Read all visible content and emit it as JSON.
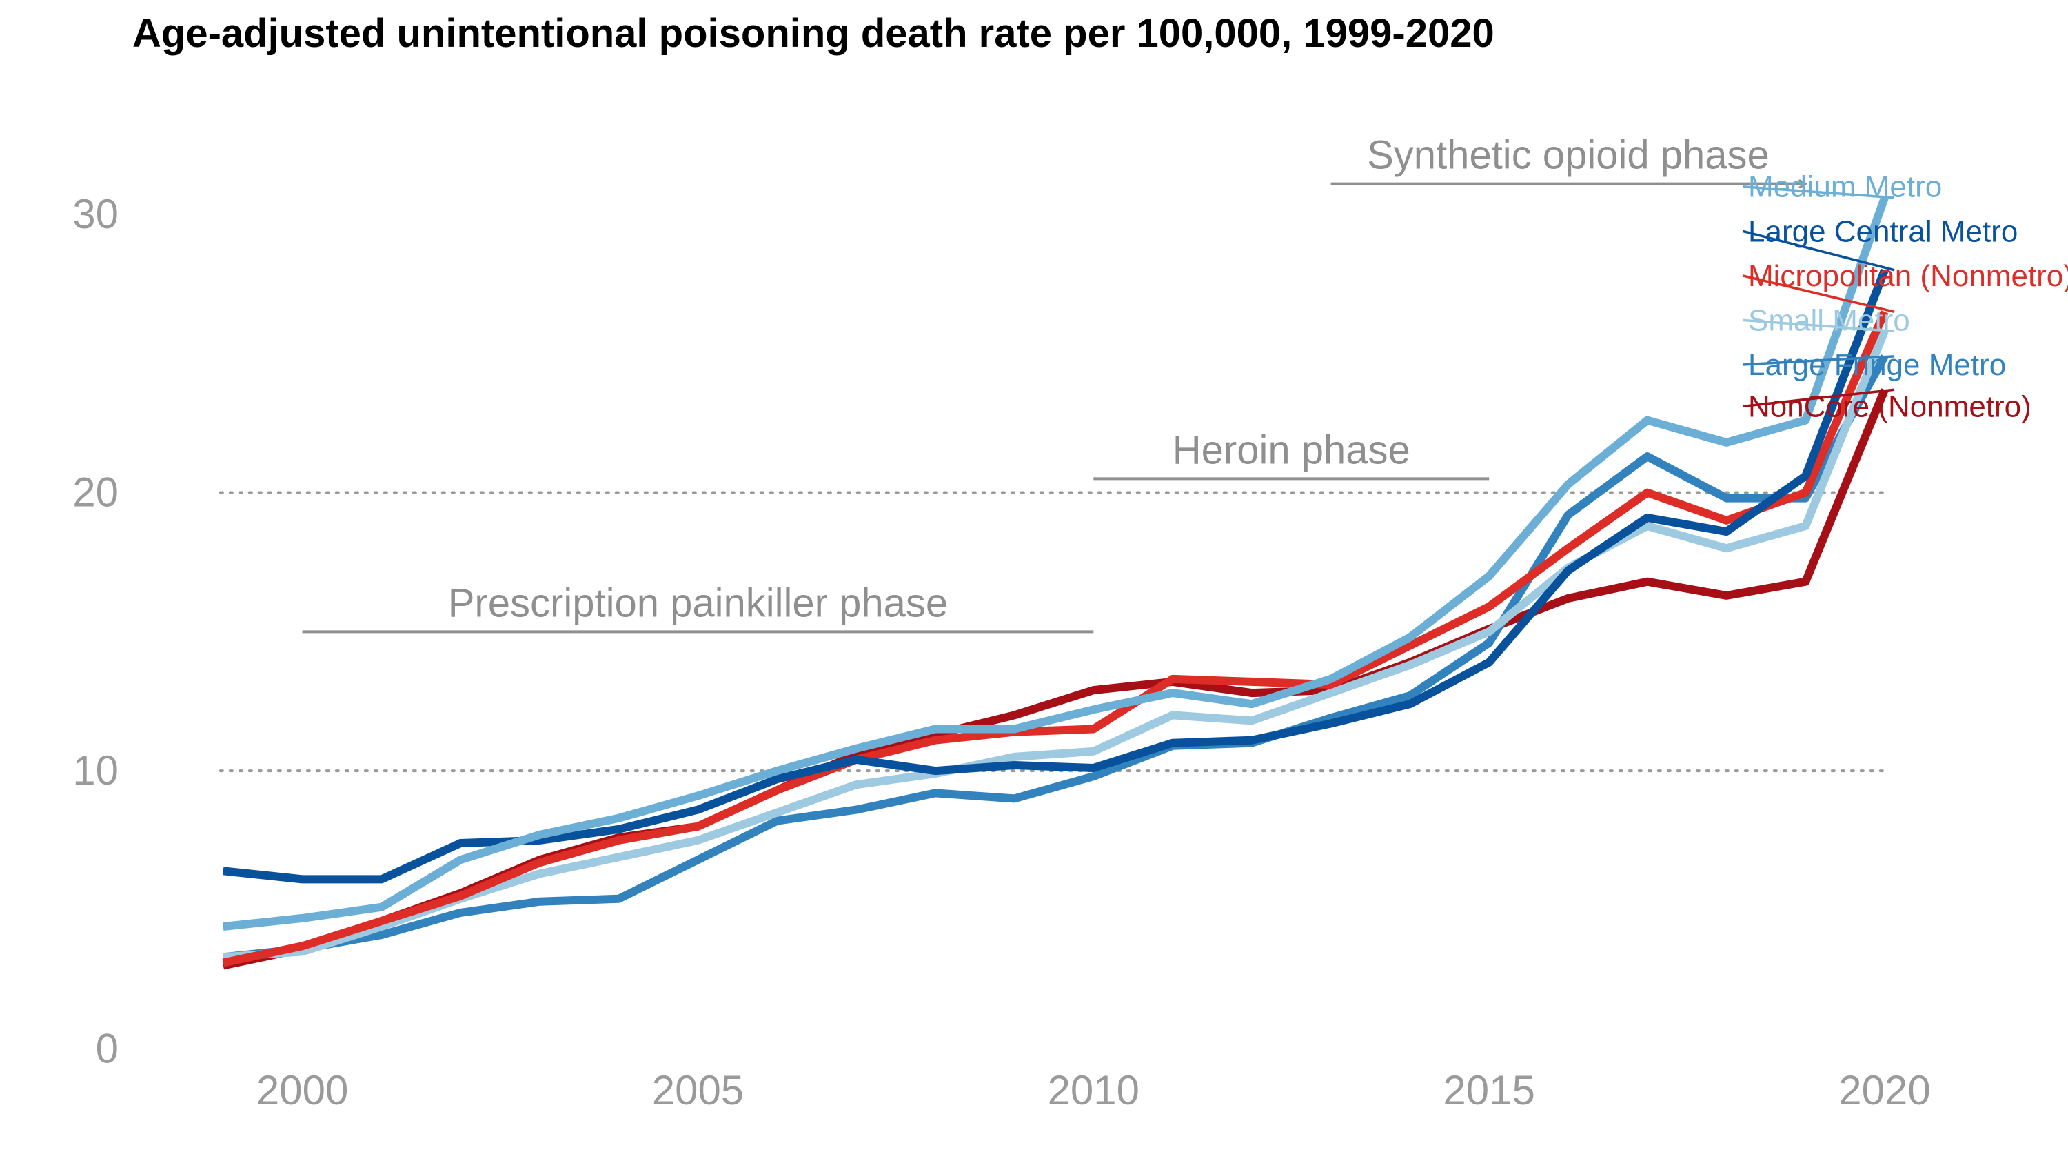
{
  "chart_data": {
    "type": "line",
    "title": "Age-adjusted unintentional poisoning death rate per 100,000, 1999-2020",
    "xlabel": "",
    "ylabel": "",
    "xlim": [
      1998.2,
      2022.3
    ],
    "ylim": [
      -1.2,
      33
    ],
    "x_ticks": [
      2000,
      2005,
      2010,
      2015,
      2020
    ],
    "x_tick_labels": [
      "2000",
      "2005",
      "2010",
      "2015",
      "2020"
    ],
    "y_ticks": [
      0,
      10,
      20,
      30
    ],
    "y_tick_labels": [
      "0",
      "10",
      "20",
      "30"
    ],
    "gridlines": [
      10,
      20
    ],
    "phases": [
      {
        "label": "Prescription painkiller phase",
        "x_start": 2000,
        "x_end": 2010,
        "y": 15,
        "arrow": false
      },
      {
        "label": "Heroin phase",
        "x_start": 2010,
        "x_end": 2015,
        "y": 20.5,
        "arrow": false
      },
      {
        "label": "Synthetic opioid phase",
        "x_start": 2013,
        "x_end": 2019,
        "y": 31.1,
        "arrow": true
      }
    ],
    "x": [
      1999,
      2000,
      2001,
      2002,
      2003,
      2004,
      2005,
      2006,
      2007,
      2008,
      2009,
      2010,
      2011,
      2012,
      2013,
      2014,
      2015,
      2016,
      2017,
      2018,
      2019,
      2020
    ],
    "series": [
      {
        "name": "Medium Metro",
        "color": "#6baed6",
        "legend_y": 31.0,
        "values": [
          4.4,
          4.7,
          5.1,
          6.8,
          7.7,
          8.3,
          9.1,
          10.0,
          10.8,
          11.5,
          11.5,
          12.2,
          12.8,
          12.4,
          13.3,
          14.8,
          17.0,
          20.3,
          22.6,
          21.8,
          22.6,
          30.6
        ]
      },
      {
        "name": "Large Central Metro",
        "color": "#08519c",
        "legend_y": 29.4,
        "values": [
          6.4,
          6.1,
          6.1,
          7.4,
          7.5,
          7.9,
          8.6,
          9.7,
          10.4,
          10.0,
          10.2,
          10.1,
          11.0,
          11.1,
          11.7,
          12.4,
          13.9,
          17.2,
          19.1,
          18.6,
          20.6,
          28.0
        ]
      },
      {
        "name": "Micropolitan (Nonmetro)",
        "color": "#de2d26",
        "legend_y": 27.8,
        "values": [
          3.1,
          3.7,
          4.6,
          5.5,
          6.7,
          7.5,
          8.0,
          9.3,
          10.4,
          11.1,
          11.4,
          11.5,
          13.3,
          13.2,
          13.1,
          14.5,
          15.9,
          18.0,
          20.0,
          19.0,
          20.0,
          26.5
        ]
      },
      {
        "name": "Small Metro",
        "color": "#9ecae1",
        "legend_y": 26.2,
        "values": [
          3.3,
          3.5,
          4.4,
          5.4,
          6.3,
          6.9,
          7.5,
          8.5,
          9.5,
          9.9,
          10.5,
          10.7,
          12.0,
          11.8,
          12.8,
          13.8,
          15.0,
          17.3,
          18.8,
          18.0,
          18.8,
          25.8
        ]
      },
      {
        "name": "Large Fringe Metro",
        "color": "#3182bd",
        "legend_y": 24.6,
        "values": [
          3.3,
          3.6,
          4.1,
          4.9,
          5.3,
          5.4,
          6.8,
          8.2,
          8.6,
          9.2,
          9.0,
          9.8,
          10.9,
          11.0,
          11.9,
          12.7,
          14.6,
          19.2,
          21.3,
          19.8,
          19.8,
          24.9
        ]
      },
      {
        "name": "NonCore (Nonmetro)",
        "color": "#a50f15",
        "legend_y": 23.1,
        "values": [
          3.0,
          3.6,
          4.6,
          5.6,
          6.8,
          7.6,
          8.0,
          9.3,
          10.6,
          11.3,
          12.0,
          12.9,
          13.2,
          12.8,
          12.9,
          13.9,
          15.1,
          16.2,
          16.8,
          16.3,
          16.8,
          23.7
        ]
      }
    ]
  }
}
